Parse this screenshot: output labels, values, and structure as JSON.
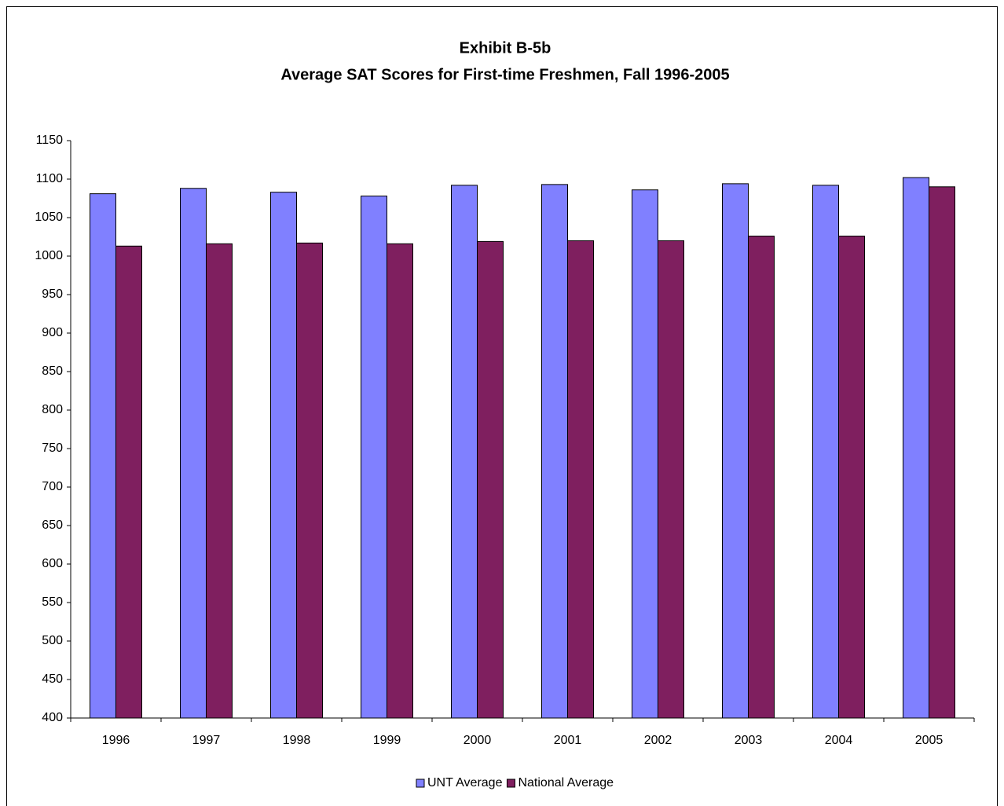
{
  "chart_data": {
    "type": "bar",
    "title": "Exhibit B-5b",
    "subtitle": "Average SAT Scores for First-time Freshmen, Fall 1996-2005",
    "categories": [
      "1996",
      "1997",
      "1998",
      "1999",
      "2000",
      "2001",
      "2002",
      "2003",
      "2004",
      "2005"
    ],
    "series": [
      {
        "name": "UNT Average",
        "color": "#8080ff",
        "values": [
          1081,
          1088,
          1083,
          1078,
          1092,
          1093,
          1086,
          1094,
          1092,
          1102
        ]
      },
      {
        "name": "National Average",
        "color": "#7f1f5f",
        "values": [
          1013,
          1016,
          1017,
          1016,
          1019,
          1020,
          1020,
          1026,
          1026,
          1090
        ]
      }
    ],
    "ylim": [
      400,
      1150
    ],
    "yticks": [
      400,
      450,
      500,
      550,
      600,
      650,
      700,
      750,
      800,
      850,
      900,
      950,
      1000,
      1050,
      1100,
      1150
    ],
    "grid": false,
    "legend": "bottom"
  }
}
